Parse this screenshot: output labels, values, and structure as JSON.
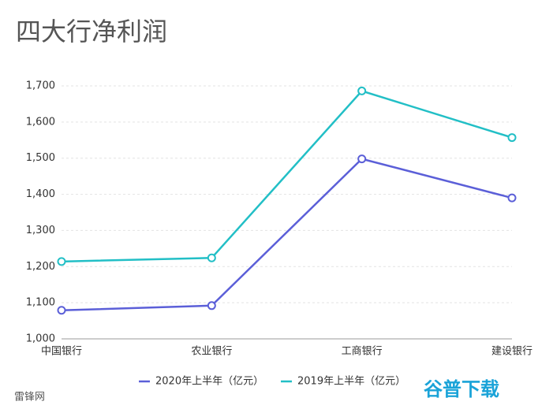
{
  "chart_data": {
    "type": "line",
    "title": "四大行净利润",
    "categories": [
      "中国银行",
      "农业银行",
      "工商银行",
      "建设银行"
    ],
    "series": [
      {
        "name": "2020年上半年（亿元）",
        "color": "#5b5fd8",
        "values": [
          1079,
          1092,
          1498,
          1390
        ]
      },
      {
        "name": "2019年上半年（亿元）",
        "color": "#22bfc6",
        "values": [
          1214,
          1224,
          1686,
          1557
        ]
      }
    ],
    "ylim": [
      1000,
      1700
    ],
    "yticks": [
      {
        "value": 1000,
        "label": "1,000"
      },
      {
        "value": 1100,
        "label": "1,100"
      },
      {
        "value": 1200,
        "label": "1,200"
      },
      {
        "value": 1300,
        "label": "1,300"
      },
      {
        "value": 1400,
        "label": "1,400"
      },
      {
        "value": 1500,
        "label": "1,500"
      },
      {
        "value": 1600,
        "label": "1,600"
      },
      {
        "value": 1700,
        "label": "1,700"
      }
    ],
    "grid": true,
    "legend": "bottom"
  },
  "source": "雷锋网",
  "watermark": "谷普下载"
}
